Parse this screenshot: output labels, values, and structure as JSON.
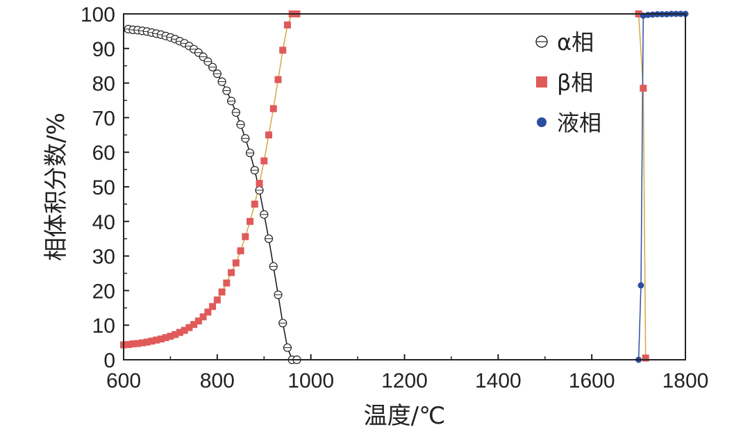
{
  "chart_data": {
    "type": "line",
    "xlabel": "温度/℃",
    "ylabel": "相体积分数/%",
    "xlim": [
      600,
      1800
    ],
    "ylim": [
      0,
      100
    ],
    "xticks": [
      600,
      800,
      1000,
      1200,
      1400,
      1600,
      1800
    ],
    "yticks": [
      0,
      10,
      20,
      30,
      40,
      50,
      60,
      70,
      80,
      90,
      100
    ],
    "grid": false,
    "legend_position": "top-right",
    "series": [
      {
        "name": "α相",
        "marker": "open-circle-bar",
        "color": "#222222",
        "line_color": "#111111",
        "x": [
          610,
          620,
          630,
          640,
          650,
          660,
          670,
          680,
          690,
          700,
          710,
          720,
          730,
          740,
          750,
          760,
          770,
          780,
          790,
          800,
          810,
          820,
          830,
          840,
          850,
          860,
          870,
          880,
          890,
          900,
          910,
          920,
          930,
          940,
          950,
          960,
          970
        ],
        "y": [
          95.6,
          95.4,
          95.3,
          95.1,
          94.9,
          94.6,
          94.3,
          94.0,
          93.6,
          93.2,
          92.7,
          92.1,
          91.5,
          90.7,
          89.8,
          88.8,
          87.6,
          86.2,
          84.6,
          82.7,
          80.4,
          77.8,
          74.8,
          71.5,
          68.0,
          64.0,
          59.8,
          54.8,
          49.0,
          42.0,
          35.0,
          27.0,
          18.8,
          10.6,
          3.5,
          0.0,
          0.0
        ]
      },
      {
        "name": "β相",
        "marker": "square",
        "color": "#e05a5a",
        "line_color": "#d9a441",
        "x": [
          600,
          610,
          620,
          630,
          640,
          650,
          660,
          670,
          680,
          690,
          700,
          710,
          720,
          730,
          740,
          750,
          760,
          770,
          780,
          790,
          800,
          810,
          820,
          830,
          840,
          850,
          860,
          870,
          880,
          890,
          900,
          910,
          920,
          930,
          940,
          950,
          960,
          970,
          1700,
          1710,
          1715
        ],
        "y": [
          4.3,
          4.4,
          4.6,
          4.7,
          4.9,
          5.1,
          5.4,
          5.7,
          6.0,
          6.4,
          6.8,
          7.3,
          7.9,
          8.5,
          9.3,
          10.2,
          11.2,
          12.4,
          13.8,
          15.4,
          17.3,
          19.6,
          22.2,
          25.2,
          28.0,
          31.5,
          35.6,
          40.0,
          45.0,
          51.0,
          57.5,
          65.0,
          72.6,
          81.0,
          89.5,
          96.8,
          100.0,
          100.0,
          100.0,
          78.5,
          0.5
        ]
      },
      {
        "name": "液相",
        "marker": "filled-circle",
        "color": "#2b4fa0",
        "line_color": "#2b4fa0",
        "x": [
          1700,
          1705,
          1710,
          1720,
          1730,
          1740,
          1750,
          1760,
          1770,
          1780,
          1790,
          1800
        ],
        "y": [
          0.0,
          21.5,
          99.5,
          99.7,
          99.8,
          99.9,
          99.9,
          99.9,
          100.0,
          100.0,
          100.0,
          100.0
        ]
      }
    ]
  }
}
